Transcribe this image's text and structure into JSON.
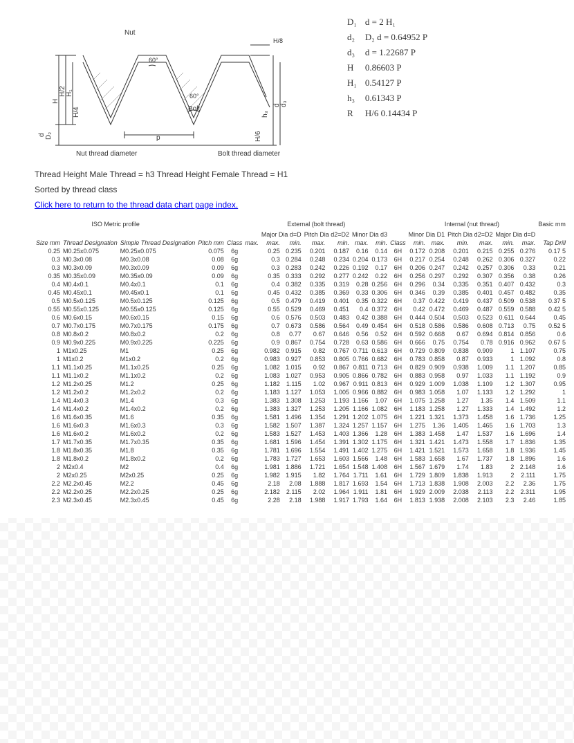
{
  "diagram": {
    "labels": {
      "nut": "Nut",
      "bolt": "Bolt",
      "p": "p",
      "h8": "H/8",
      "h": "H",
      "h2": "H/2",
      "h1": "H₁",
      "h4": "H/4",
      "d": "d",
      "d2": "D₂",
      "d3": "d₃",
      "h3": "h₃",
      "h6": "H/6",
      "sixty": "60°",
      "nut_dia": "Nut thread diameter",
      "bolt_dia": "Bolt thread diameter"
    },
    "colors": {
      "line": "#333333",
      "text": "#333333"
    }
  },
  "formulas": [
    [
      "D₁",
      "d = 2 H₁"
    ],
    [
      "d₂",
      "D₂   d = 0.64952 P"
    ],
    [
      "d₃",
      "d = 1.22687 P"
    ],
    [
      "H",
      "0.86603 P"
    ],
    [
      "H₁",
      "0.54127 P"
    ],
    [
      "h₃",
      "0.61343 P"
    ],
    [
      "R",
      "H/6   0.14434 P"
    ]
  ],
  "notes": {
    "note1": "Thread Height Male Thread = h3    Thread Height Female Thread = H1",
    "note2": "Sorted by thread class",
    "link": "Click here to return to the thread data chart page index."
  },
  "headers": {
    "group_iso": "ISO Metric profile",
    "group_ext": "External (bolt thread)",
    "group_int": "Internal (nut thread)",
    "basic": "Basic mm",
    "major": "Major Dia d=D",
    "pitchd": "Pitch Dia d2=D2",
    "minor": "Minor Dia d3",
    "minord1": "Minor Dia D1",
    "pitchd2": "Pitch Dia d2=D2",
    "majord": "Major Dia d=D",
    "size": "Size mm",
    "tdes": "Thread Designation",
    "sdes": "Simple Thread Designation",
    "pitch": "Pitch mm",
    "class": "Class",
    "max": "max.",
    "min": "min.",
    "tap": "Tap Drill"
  },
  "rows": [
    [
      "0.25",
      "M0.25x0.075",
      "M0.25x0.075",
      "0.075",
      "6g",
      "",
      "0.25",
      "0.235",
      "0.201",
      "0.187",
      "0.16",
      "0.14",
      "6H",
      "0.172",
      "0.208",
      "0.201",
      "0.215",
      "0.255",
      "0.276",
      "0.17 5"
    ],
    [
      "0.3",
      "M0.3x0.08",
      "M0.3x0.08",
      "0.08",
      "6g",
      "",
      "0.3",
      "0.284",
      "0.248",
      "0.234",
      "0.204",
      "0.173",
      "6H",
      "0.217",
      "0.254",
      "0.248",
      "0.262",
      "0.306",
      "0.327",
      "0.22"
    ],
    [
      "0.3",
      "M0.3x0.09",
      "M0.3x0.09",
      "0.09",
      "6g",
      "",
      "0.3",
      "0.283",
      "0.242",
      "0.226",
      "0.192",
      "0.17",
      "6H",
      "0.206",
      "0.247",
      "0.242",
      "0.257",
      "0.306",
      "0.33",
      "0.21"
    ],
    [
      "0.35",
      "M0.35x0.09",
      "M0.35x0.09",
      "0.09",
      "6g",
      "",
      "0.35",
      "0.333",
      "0.292",
      "0.277",
      "0.242",
      "0.22",
      "6H",
      "0.256",
      "0.297",
      "0.292",
      "0.307",
      "0.356",
      "0.38",
      "0.26"
    ],
    [
      "0.4",
      "M0.4x0.1",
      "M0.4x0.1",
      "0.1",
      "6g",
      "",
      "0.4",
      "0.382",
      "0.335",
      "0.319",
      "0.28",
      "0.256",
      "6H",
      "0.296",
      "0.34",
      "0.335",
      "0.351",
      "0.407",
      "0.432",
      "0.3"
    ],
    [
      "0.45",
      "M0.45x0.1",
      "M0.45x0.1",
      "0.1",
      "6g",
      "",
      "0.45",
      "0.432",
      "0.385",
      "0.369",
      "0.33",
      "0.306",
      "6H",
      "0.346",
      "0.39",
      "0.385",
      "0.401",
      "0.457",
      "0.482",
      "0.35"
    ],
    [
      "0.5",
      "M0.5x0.125",
      "M0.5x0.125",
      "0.125",
      "6g",
      "",
      "0.5",
      "0.479",
      "0.419",
      "0.401",
      "0.35",
      "0.322",
      "6H",
      "0.37",
      "0.422",
      "0.419",
      "0.437",
      "0.509",
      "0.538",
      "0.37 5"
    ],
    [
      "0.55",
      "M0.55x0.125",
      "M0.55x0.125",
      "0.125",
      "6g",
      "",
      "0.55",
      "0.529",
      "0.469",
      "0.451",
      "0.4",
      "0.372",
      "6H",
      "0.42",
      "0.472",
      "0.469",
      "0.487",
      "0.559",
      "0.588",
      "0.42 5"
    ],
    [
      "0.6",
      "M0.6x0.15",
      "M0.6x0.15",
      "0.15",
      "6g",
      "",
      "0.6",
      "0.576",
      "0.503",
      "0.483",
      "0.42",
      "0.388",
      "6H",
      "0.444",
      "0.504",
      "0.503",
      "0.523",
      "0.611",
      "0.644",
      "0.45"
    ],
    [
      "0.7",
      "M0.7x0.175",
      "M0.7x0.175",
      "0.175",
      "6g",
      "",
      "0.7",
      "0.673",
      "0.586",
      "0.564",
      "0.49",
      "0.454",
      "6H",
      "0.518",
      "0.586",
      "0.586",
      "0.608",
      "0.713",
      "0.75",
      "0.52 5"
    ],
    [
      "0.8",
      "M0.8x0.2",
      "M0.8x0.2",
      "0.2",
      "6g",
      "",
      "0.8",
      "0.77",
      "0.67",
      "0.646",
      "0.56",
      "0.52",
      "6H",
      "0.592",
      "0.668",
      "0.67",
      "0.694",
      "0.814",
      "0.856",
      "0.6"
    ],
    [
      "0.9",
      "M0.9x0.225",
      "M0.9x0.225",
      "0.225",
      "6g",
      "",
      "0.9",
      "0.867",
      "0.754",
      "0.728",
      "0.63",
      "0.586",
      "6H",
      "0.666",
      "0.75",
      "0.754",
      "0.78",
      "0.916",
      "0.962",
      "0.67 5"
    ],
    [
      "1",
      "M1x0.25",
      "M1",
      "0.25",
      "6g",
      "",
      "0.982",
      "0.915",
      "0.82",
      "0.767",
      "0.711",
      "0.613",
      "6H",
      "0.729",
      "0.809",
      "0.838",
      "0.909",
      "1",
      "1.107",
      "0.75"
    ],
    [
      "1",
      "M1x0.2",
      "M1x0.2",
      "0.2",
      "6g",
      "",
      "0.983",
      "0.927",
      "0.853",
      "0.805",
      "0.766",
      "0.682",
      "6H",
      "0.783",
      "0.858",
      "0.87",
      "0.933",
      "1",
      "1.092",
      "0.8"
    ],
    [
      "1.1",
      "M1.1x0.25",
      "M1.1x0.25",
      "0.25",
      "6g",
      "",
      "1.082",
      "1.015",
      "0.92",
      "0.867",
      "0.811",
      "0.713",
      "6H",
      "0.829",
      "0.909",
      "0.938",
      "1.009",
      "1.1",
      "1.207",
      "0.85"
    ],
    [
      "1.1",
      "M1.1x0.2",
      "M1.1x0.2",
      "0.2",
      "6g",
      "",
      "1.083",
      "1.027",
      "0.953",
      "0.905",
      "0.866",
      "0.782",
      "6H",
      "0.883",
      "0.958",
      "0.97",
      "1.033",
      "1.1",
      "1.192",
      "0.9"
    ],
    [
      "1.2",
      "M1.2x0.25",
      "M1.2",
      "0.25",
      "6g",
      "",
      "1.182",
      "1.115",
      "1.02",
      "0.967",
      "0.911",
      "0.813",
      "6H",
      "0.929",
      "1.009",
      "1.038",
      "1.109",
      "1.2",
      "1.307",
      "0.95"
    ],
    [
      "1.2",
      "M1.2x0.2",
      "M1.2x0.2",
      "0.2",
      "6g",
      "",
      "1.183",
      "1.127",
      "1.053",
      "1.005",
      "0.966",
      "0.882",
      "6H",
      "0.983",
      "1.058",
      "1.07",
      "1.133",
      "1.2",
      "1.292",
      "1"
    ],
    [
      "1.4",
      "M1.4x0.3",
      "M1.4",
      "0.3",
      "6g",
      "",
      "1.383",
      "1.308",
      "1.253",
      "1.193",
      "1.166",
      "1.07",
      "6H",
      "1.075",
      "1.258",
      "1.27",
      "1.35",
      "1.4",
      "1.509",
      "1.1"
    ],
    [
      "1.4",
      "M1.4x0.2",
      "M1.4x0.2",
      "0.2",
      "6g",
      "",
      "1.383",
      "1.327",
      "1.253",
      "1.205",
      "1.166",
      "1.082",
      "6H",
      "1.183",
      "1.258",
      "1.27",
      "1.333",
      "1.4",
      "1.492",
      "1.2"
    ],
    [
      "1.6",
      "M1.6x0.35",
      "M1.6",
      "0.35",
      "6g",
      "",
      "1.581",
      "1.496",
      "1.354",
      "1.291",
      "1.202",
      "1.075",
      "6H",
      "1.221",
      "1.321",
      "1.373",
      "1.458",
      "1.6",
      "1.736",
      "1.25"
    ],
    [
      "1.6",
      "M1.6x0.3",
      "M1.6x0.3",
      "0.3",
      "6g",
      "",
      "1.582",
      "1.507",
      "1.387",
      "1.324",
      "1.257",
      "1.157",
      "6H",
      "1.275",
      "1.36",
      "1.405",
      "1.465",
      "1.6",
      "1.703",
      "1.3"
    ],
    [
      "1.6",
      "M1.6x0.2",
      "M1.6x0.2",
      "0.2",
      "6g",
      "",
      "1.583",
      "1.527",
      "1.453",
      "1.403",
      "1.366",
      "1.28",
      "6H",
      "1.383",
      "1.458",
      "1.47",
      "1.537",
      "1.6",
      "1.696",
      "1.4"
    ],
    [
      "1.7",
      "M1.7x0.35",
      "M1.7x0.35",
      "0.35",
      "6g",
      "",
      "1.681",
      "1.596",
      "1.454",
      "1.391",
      "1.302",
      "1.175",
      "6H",
      "1.321",
      "1.421",
      "1.473",
      "1.558",
      "1.7",
      "1.836",
      "1.35"
    ],
    [
      "1.8",
      "M1.8x0.35",
      "M1.8",
      "0.35",
      "6g",
      "",
      "1.781",
      "1.696",
      "1.554",
      "1.491",
      "1.402",
      "1.275",
      "6H",
      "1.421",
      "1.521",
      "1.573",
      "1.658",
      "1.8",
      "1.936",
      "1.45"
    ],
    [
      "1.8",
      "M1.8x0.2",
      "M1.8x0.2",
      "0.2",
      "6g",
      "",
      "1.783",
      "1.727",
      "1.653",
      "1.603",
      "1.566",
      "1.48",
      "6H",
      "1.583",
      "1.658",
      "1.67",
      "1.737",
      "1.8",
      "1.896",
      "1.6"
    ],
    [
      "2",
      "M2x0.4",
      "M2",
      "0.4",
      "6g",
      "",
      "1.981",
      "1.886",
      "1.721",
      "1.654",
      "1.548",
      "1.408",
      "6H",
      "1.567",
      "1.679",
      "1.74",
      "1.83",
      "2",
      "2.148",
      "1.6"
    ],
    [
      "2",
      "M2x0.25",
      "M2x0.25",
      "0.25",
      "6g",
      "",
      "1.982",
      "1.915",
      "1.82",
      "1.764",
      "1.711",
      "1.61",
      "6H",
      "1.729",
      "1.809",
      "1.838",
      "1.913",
      "2",
      "2.111",
      "1.75"
    ],
    [
      "2.2",
      "M2.2x0.45",
      "M2.2",
      "0.45",
      "6g",
      "",
      "2.18",
      "2.08",
      "1.888",
      "1.817",
      "1.693",
      "1.54",
      "6H",
      "1.713",
      "1.838",
      "1.908",
      "2.003",
      "2.2",
      "2.36",
      "1.75"
    ],
    [
      "2.2",
      "M2.2x0.25",
      "M2.2x0.25",
      "0.25",
      "6g",
      "",
      "2.182",
      "2.115",
      "2.02",
      "1.964",
      "1.911",
      "1.81",
      "6H",
      "1.929",
      "2.009",
      "2.038",
      "2.113",
      "2.2",
      "2.311",
      "1.95"
    ],
    [
      "2.3",
      "M2.3x0.45",
      "M2.3x0.45",
      "0.45",
      "6g",
      "",
      "2.28",
      "2.18",
      "1.988",
      "1.917",
      "1.793",
      "1.64",
      "6H",
      "1.813",
      "1.938",
      "2.008",
      "2.103",
      "2.3",
      "2.46",
      "1.85"
    ]
  ]
}
